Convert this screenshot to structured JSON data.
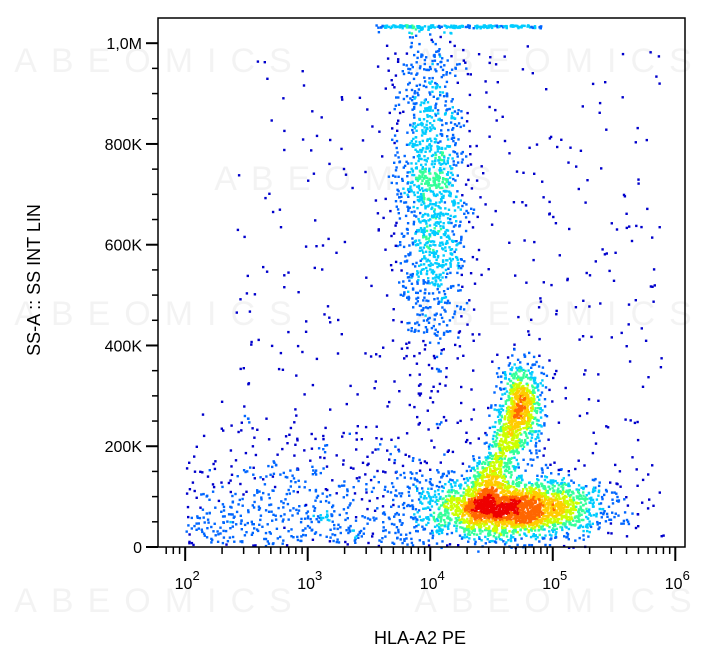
{
  "chart_data": {
    "type": "scatter",
    "subtype": "flow-cytometry-density-dot-plot",
    "xlabel": "HLA-A2 PE",
    "ylabel": "SS-A :: SS INT LIN",
    "x_scale": "log",
    "xlim": [
      60,
      1200000
    ],
    "ylim": [
      0,
      1050000
    ],
    "x_ticks": [
      {
        "value": 100,
        "base": "10",
        "exp": "2"
      },
      {
        "value": 1000,
        "base": "10",
        "exp": "3"
      },
      {
        "value": 10000,
        "base": "10",
        "exp": "4"
      },
      {
        "value": 100000,
        "base": "10",
        "exp": "5"
      },
      {
        "value": 1000000,
        "base": "10",
        "exp": "6"
      }
    ],
    "y_ticks": [
      {
        "value": 0,
        "label": "0"
      },
      {
        "value": 200000,
        "label": "200K"
      },
      {
        "value": 400000,
        "label": "400K"
      },
      {
        "value": 600000,
        "label": "600K"
      },
      {
        "value": 800000,
        "label": "800K"
      },
      {
        "value": 1000000,
        "label": "1,0M"
      }
    ],
    "populations": [
      {
        "x_center": 10000,
        "y_center": 700000,
        "spread_log_x": 0.15,
        "spread_y": 160000,
        "relative_density": 1.0
      },
      {
        "x_center": 55000,
        "y_center": 290000,
        "spread_log_x": 0.09,
        "spread_y": 45000,
        "relative_density": 0.45
      },
      {
        "x_center": 50000,
        "y_center": 80000,
        "spread_log_x": 0.35,
        "spread_y": 30000,
        "relative_density": 1.8
      }
    ],
    "density_colors": [
      "#0000cc",
      "#0066ff",
      "#00ccff",
      "#33ff99",
      "#ccff00",
      "#ffcc00",
      "#ff6600",
      "#ee0000"
    ],
    "watermark_text": "ABEOMICS",
    "grid": false
  }
}
